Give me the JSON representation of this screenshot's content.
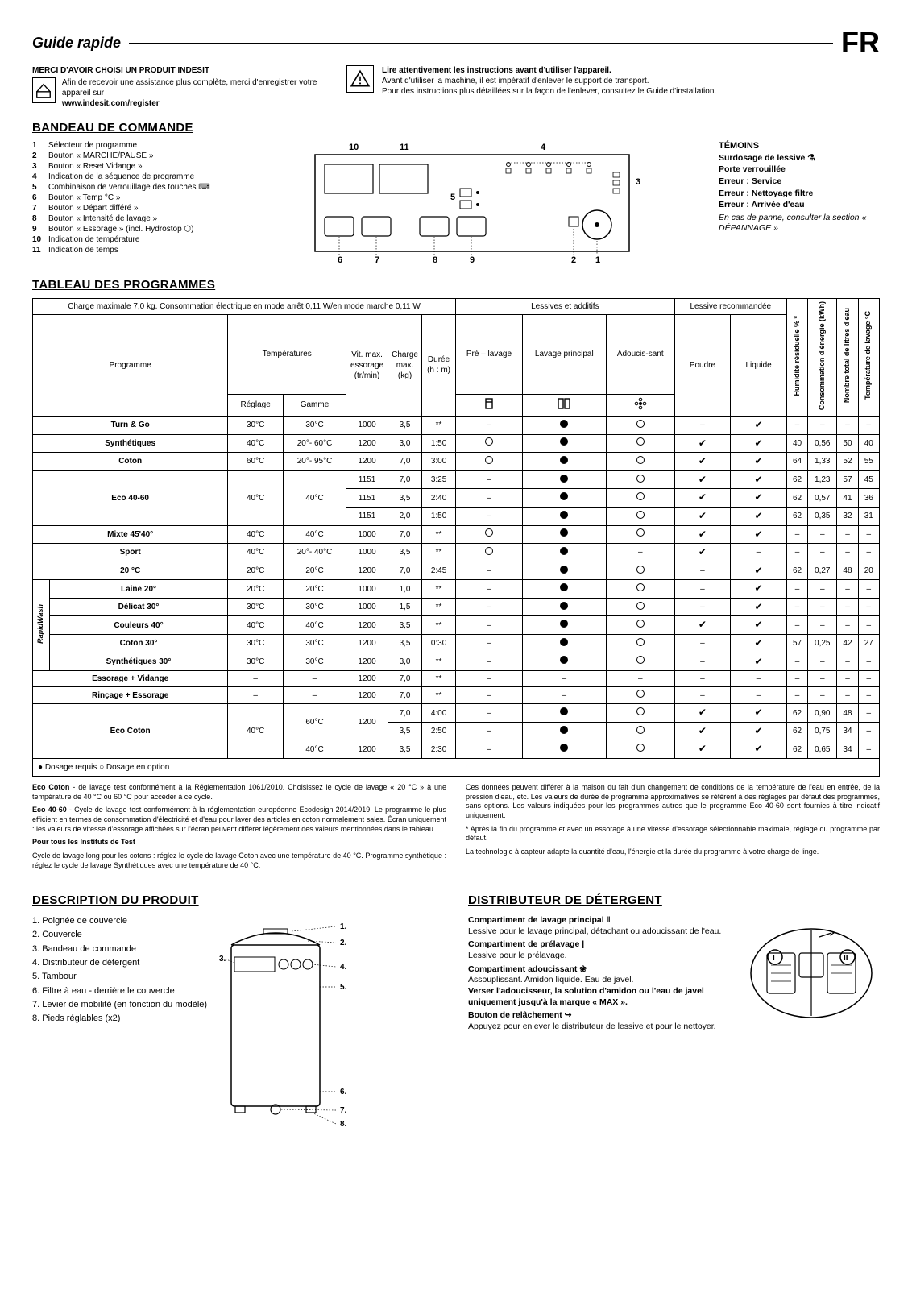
{
  "header": {
    "guide": "Guide rapide",
    "lang": "FR"
  },
  "intro": {
    "thanks": "MERCI D'AVOIR CHOISI UN PRODUIT INDESIT",
    "reg_text": "Afin de recevoir une assistance plus complète, merci d'enregistrer votre appareil sur",
    "reg_url": "www.indesit.com/register",
    "warn_bold": "Lire attentivement les instructions avant d'utiliser l'appareil.",
    "warn_line1": "Avant d'utiliser la machine, il est impératif d'enlever le support de transport.",
    "warn_line2": "Pour des instructions plus détaillées sur la façon de l'enlever, consultez le Guide d'installation."
  },
  "panel": {
    "title": "BANDEAU DE COMMANDE",
    "legend": [
      "Sélecteur de programme",
      "Bouton « MARCHE/PAUSE »",
      "Bouton « Reset Vidange »",
      "Indication de la séquence de programme",
      "Combinaison de verrouillage des touches ⌨",
      "Bouton « Temp °C »",
      "Bouton « Départ différé »",
      "Bouton « Intensité de lavage »",
      "Bouton « Essorage » (incl. Hydrostop ⬡)",
      "Indication de température",
      "Indication de temps"
    ],
    "temoins_title": "TÉMOINS",
    "temoins": [
      "Surdosage de lessive ⚗",
      "Porte verrouillée",
      "Erreur : Service",
      "Erreur : Nettoyage filtre",
      "Erreur : Arrivée d'eau"
    ],
    "temoins_note": "En cas de panne, consulter la section « DÉPANNAGE »"
  },
  "programmes": {
    "title": "TABLEAU DES PROGRAMMES",
    "header_note": "Charge maximale 7,0 kg. Consommation électrique en mode arrêt 0,11 W/en mode marche 0,11 W",
    "group_lessives": "Lessives et additifs",
    "group_recom": "Lessive recommandée",
    "cols": {
      "programme": "Programme",
      "temperatures": "Températures",
      "reglage": "Réglage",
      "gamme": "Gamme",
      "vit": "Vit. max. essorage (tr/min)",
      "charge": "Charge max. (kg)",
      "duree": "Durée (h : m)",
      "pre": "Pré – lavage",
      "principal": "Lavage principal",
      "adouc": "Adoucis-sant",
      "poudre": "Poudre",
      "liquide": "Liquide",
      "humidite": "Humidité résiduelle % *",
      "conso": "Consommation d'énergie (kWh)",
      "eau": "Nombre total de litres d'eau",
      "tlavage": "Température de lavage °C"
    },
    "rapidwash": "RapidWash",
    "rows": [
      {
        "name": "Turn & Go",
        "bold": true,
        "reg": "30°C",
        "gam": "30°C",
        "vit": "1000",
        "chg": "3,5",
        "dur": "**",
        "pre": "–",
        "prin": "●",
        "ad": "○",
        "pou": "–",
        "liq": "✔",
        "hum": "–",
        "con": "–",
        "eau": "–",
        "tl": "–"
      },
      {
        "name": "Synthétiques",
        "bold": true,
        "reg": "40°C",
        "gam": "20°- 60°C",
        "vit": "1200",
        "chg": "3,0",
        "dur": "1:50",
        "pre": "○",
        "prin": "●",
        "ad": "○",
        "pou": "✔",
        "liq": "✔",
        "hum": "40",
        "con": "0,56",
        "eau": "50",
        "tl": "40"
      },
      {
        "name": "Coton",
        "bold": true,
        "reg": "60°C",
        "gam": "20°- 95°C",
        "vit": "1200",
        "chg": "7,0",
        "dur": "3:00",
        "pre": "○",
        "prin": "●",
        "ad": "○",
        "pou": "✔",
        "liq": "✔",
        "hum": "64",
        "con": "1,33",
        "eau": "52",
        "tl": "55"
      },
      {
        "name": "Eco 40-60",
        "bold": true,
        "rowspan": 3,
        "reg": "40°C",
        "gam": "40°C",
        "sub": [
          {
            "vit": "1151",
            "chg": "7,0",
            "dur": "3:25",
            "pre": "–",
            "prin": "●",
            "ad": "○",
            "pou": "✔",
            "liq": "✔",
            "hum": "62",
            "con": "1,23",
            "eau": "57",
            "tl": "45"
          },
          {
            "vit": "1151",
            "chg": "3,5",
            "dur": "2:40",
            "pre": "–",
            "prin": "●",
            "ad": "○",
            "pou": "✔",
            "liq": "✔",
            "hum": "62",
            "con": "0,57",
            "eau": "41",
            "tl": "36"
          },
          {
            "vit": "1151",
            "chg": "2,0",
            "dur": "1:50",
            "pre": "–",
            "prin": "●",
            "ad": "○",
            "pou": "✔",
            "liq": "✔",
            "hum": "62",
            "con": "0,35",
            "eau": "32",
            "tl": "31"
          }
        ]
      },
      {
        "name": "Mixte 45'40°",
        "bold": true,
        "reg": "40°C",
        "gam": "40°C",
        "vit": "1000",
        "chg": "7,0",
        "dur": "**",
        "pre": "○",
        "prin": "●",
        "ad": "○",
        "pou": "✔",
        "liq": "✔",
        "hum": "–",
        "con": "–",
        "eau": "–",
        "tl": "–"
      },
      {
        "name": "Sport",
        "bold": true,
        "reg": "40°C",
        "gam": "20°- 40°C",
        "vit": "1000",
        "chg": "3,5",
        "dur": "**",
        "pre": "○",
        "prin": "●",
        "ad": "–",
        "pou": "✔",
        "liq": "–",
        "hum": "–",
        "con": "–",
        "eau": "–",
        "tl": "–"
      },
      {
        "name": "20 °C",
        "bold": true,
        "reg": "20°C",
        "gam": "20°C",
        "vit": "1200",
        "chg": "7,0",
        "dur": "2:45",
        "pre": "–",
        "prin": "●",
        "ad": "○",
        "pou": "–",
        "liq": "✔",
        "hum": "62",
        "con": "0,27",
        "eau": "48",
        "tl": "20"
      },
      {
        "name": "Laine 20°",
        "rw": true,
        "bold": true,
        "reg": "20°C",
        "gam": "20°C",
        "vit": "1000",
        "chg": "1,0",
        "dur": "**",
        "pre": "–",
        "prin": "●",
        "ad": "○",
        "pou": "–",
        "liq": "✔",
        "hum": "–",
        "con": "–",
        "eau": "–",
        "tl": "–"
      },
      {
        "name": "Délicat 30°",
        "rw": true,
        "bold": true,
        "reg": "30°C",
        "gam": "30°C",
        "vit": "1000",
        "chg": "1,5",
        "dur": "**",
        "pre": "–",
        "prin": "●",
        "ad": "○",
        "pou": "–",
        "liq": "✔",
        "hum": "–",
        "con": "–",
        "eau": "–",
        "tl": "–"
      },
      {
        "name": "Couleurs 40°",
        "rw": true,
        "bold": true,
        "reg": "40°C",
        "gam": "40°C",
        "vit": "1200",
        "chg": "3,5",
        "dur": "**",
        "pre": "–",
        "prin": "●",
        "ad": "○",
        "pou": "✔",
        "liq": "✔",
        "hum": "–",
        "con": "–",
        "eau": "–",
        "tl": "–"
      },
      {
        "name": "Coton 30°",
        "rw": true,
        "bold": true,
        "reg": "30°C",
        "gam": "30°C",
        "vit": "1200",
        "chg": "3,5",
        "dur": "0:30",
        "pre": "–",
        "prin": "●",
        "ad": "○",
        "pou": "–",
        "liq": "✔",
        "hum": "57",
        "con": "0,25",
        "eau": "42",
        "tl": "27"
      },
      {
        "name": "Synthétiques 30°",
        "rw": true,
        "bold": true,
        "reg": "30°C",
        "gam": "30°C",
        "vit": "1200",
        "chg": "3,0",
        "dur": "**",
        "pre": "–",
        "prin": "●",
        "ad": "○",
        "pou": "–",
        "liq": "✔",
        "hum": "–",
        "con": "–",
        "eau": "–",
        "tl": "–"
      },
      {
        "name": "Essorage + Vidange",
        "bold": true,
        "reg": "–",
        "gam": "–",
        "vit": "1200",
        "chg": "7,0",
        "dur": "**",
        "pre": "–",
        "prin": "–",
        "ad": "–",
        "pou": "–",
        "liq": "–",
        "hum": "–",
        "con": "–",
        "eau": "–",
        "tl": "–"
      },
      {
        "name": "Rinçage + Essorage",
        "bold": true,
        "reg": "–",
        "gam": "–",
        "vit": "1200",
        "chg": "7,0",
        "dur": "**",
        "pre": "–",
        "prin": "–",
        "ad": "○",
        "pou": "–",
        "liq": "–",
        "hum": "–",
        "con": "–",
        "eau": "–",
        "tl": "–"
      },
      {
        "name": "Eco Coton",
        "bold": true,
        "rowspan": 3,
        "reg": "40°C",
        "sub2": [
          {
            "gam": "60°C",
            "vit": "1200",
            "chg_sub": [
              {
                "chg": "7,0",
                "dur": "4:00",
                "pre": "–",
                "prin": "●",
                "ad": "○",
                "pou": "✔",
                "liq": "✔",
                "hum": "62",
                "con": "0,90",
                "eau": "48",
                "tl": "–"
              },
              {
                "chg": "3,5",
                "dur": "2:50",
                "pre": "–",
                "prin": "●",
                "ad": "○",
                "pou": "✔",
                "liq": "✔",
                "hum": "62",
                "con": "0,75",
                "eau": "34",
                "tl": "–"
              }
            ]
          },
          {
            "gam": "40°C",
            "vit": "1200",
            "chg_sub": [
              {
                "chg": "3,5",
                "dur": "2:30",
                "pre": "–",
                "prin": "●",
                "ad": "○",
                "pou": "✔",
                "liq": "✔",
                "hum": "62",
                "con": "0,65",
                "eau": "34",
                "tl": "–"
              }
            ]
          }
        ]
      }
    ],
    "legend": "● Dosage requis ○ Dosage en option",
    "notes_left": [
      {
        "b": "Eco Coton",
        "t": "  - de lavage test conformément à la Réglementation 1061/2010. Choisissez le cycle de lavage « 20 °C » à une température de 40 °C ou 60 °C pour accéder à ce cycle."
      },
      {
        "b": "Eco 40-60",
        "t": "  - Cycle de lavage test conformément à la réglementation européenne Écodesign 2014/2019. Le programme le plus efficient en termes de consommation d'électricité et d'eau pour laver des articles en coton normalement sales. Écran uniquement : les valeurs de vitesse d'essorage affichées sur l'écran peuvent différer légèrement des valeurs mentionnées dans le tableau."
      },
      {
        "b": "Pour tous les Instituts de Test",
        "t": ""
      },
      {
        "b": "",
        "t": "Cycle de lavage long pour les cotons : réglez le cycle de lavage Coton avec une température de 40 °C. Programme synthétique : réglez le cycle de lavage Synthétiques avec une température de 40 °C."
      }
    ],
    "notes_right": [
      "Ces données peuvent différer à la maison du fait d'un changement de conditions de la température de l'eau en entrée, de la pression d'eau, etc. Les valeurs de durée de programme approximatives se réfèrent à des réglages par défaut des programmes, sans options. Les valeurs indiquées pour les programmes autres que le programme Eco 40-60 sont fournies à titre indicatif uniquement.",
      "* Après la fin du programme et avec un essorage à une vitesse d'essorage sélectionnable maximale, réglage du programme par défaut.",
      "La technologie à capteur adapte la quantité d'eau, l'énergie et la durée du programme à votre charge de linge."
    ]
  },
  "description": {
    "title": "DESCRIPTION DU PRODUIT",
    "items": [
      "Poignée de couvercle",
      "Couvercle",
      "Bandeau de commande",
      "Distributeur de détergent",
      "Tambour",
      "Filtre à eau - derrière le couvercle",
      "Levier de mobilité (en fonction du modèle)",
      "Pieds réglables (x2)"
    ]
  },
  "detergent": {
    "title": "DISTRIBUTEUR DE DÉTERGENT",
    "c1_title": "Compartiment de lavage principal ‖",
    "c1_text": "Lessive pour le lavage principal, détachant ou adoucissant de l'eau.",
    "c2_title": "Compartiment de prélavage |",
    "c2_text": "Lessive pour le prélavage.",
    "c3_title": "Compartiment adoucissant ❀",
    "c3_text": "Assouplissant. Amidon liquide. Eau de javel.",
    "c3_bold": "Verser l'adoucisseur, la solution d'amidon ou l'eau de javel uniquement jusqu'à la marque « MAX ».",
    "c4_title": "Bouton de relâchement ↪",
    "c4_text": "Appuyez pour enlever le distributeur de lessive et pour le nettoyer."
  }
}
